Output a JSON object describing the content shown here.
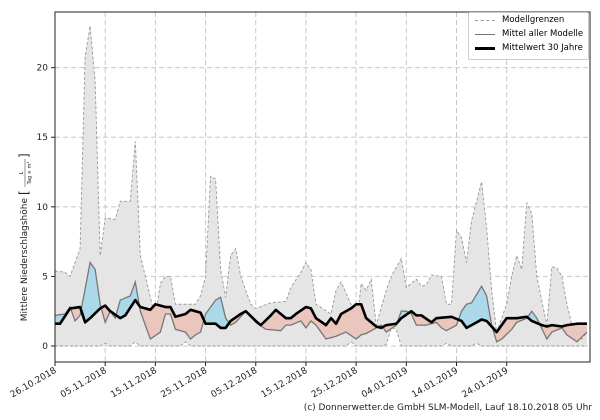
{
  "chart_data": {
    "type": "area",
    "ylabel": "Mittlere Niederschlagshöhe",
    "ylabel_unit_numerator": "L",
    "ylabel_unit_denominator": "Tag × m²",
    "ylim": [
      -1.15,
      24
    ],
    "yticks": [
      "0",
      "5",
      "10",
      "15",
      "20"
    ],
    "xlim": [
      "2018-10-26",
      "2019-02-09"
    ],
    "xticks": [
      {
        "date": "2018-10-26",
        "label": "26.10.2018"
      },
      {
        "date": "2018-11-05",
        "label": "05.11.2018"
      },
      {
        "date": "2018-11-15",
        "label": "15.11.2018"
      },
      {
        "date": "2018-11-25",
        "label": "25.11.2018"
      },
      {
        "date": "2018-12-05",
        "label": "05.12.2018"
      },
      {
        "date": "2018-12-15",
        "label": "15.12.2018"
      },
      {
        "date": "2018-12-25",
        "label": "25.12.2018"
      },
      {
        "date": "2019-01-04",
        "label": "04.01.2019"
      },
      {
        "date": "2019-01-14",
        "label": "14.01.2019"
      },
      {
        "date": "2019-01-24",
        "label": "24.01.2019"
      }
    ],
    "grid": true,
    "legend_position": "top-right",
    "legend": [
      "Modellgrenzen",
      "Mittel aller Modelle",
      "Mittelwert 30 Jahre"
    ],
    "colors": {
      "range_fill": "#e5e5e5",
      "range_edge": "#999999",
      "models_line": "#777777",
      "clim_line": "#000000",
      "above_fill": "#acd9ea",
      "below_fill": "#eac6bd"
    },
    "series": {
      "upper": [
        [
          "2018-10-26",
          5.4
        ],
        [
          "2018-10-28",
          5.3
        ],
        [
          "2018-10-29",
          5.0
        ],
        [
          "2018-10-31",
          7.0
        ],
        [
          "2018-11-01",
          20.8
        ],
        [
          "2018-11-02",
          23.0
        ],
        [
          "2018-11-03",
          19.0
        ],
        [
          "2018-11-04",
          6.5
        ],
        [
          "2018-11-05",
          9.2
        ],
        [
          "2018-11-07",
          9.1
        ],
        [
          "2018-11-08",
          10.4
        ],
        [
          "2018-11-10",
          10.4
        ],
        [
          "2018-11-11",
          14.7
        ],
        [
          "2018-11-12",
          6.5
        ],
        [
          "2018-11-13",
          5.0
        ],
        [
          "2018-11-15",
          2.0
        ],
        [
          "2018-11-16",
          4.5
        ],
        [
          "2018-11-17",
          5.0
        ],
        [
          "2018-11-18",
          5.0
        ],
        [
          "2018-11-19",
          3.0
        ],
        [
          "2018-11-23",
          3.0
        ],
        [
          "2018-11-24",
          3.6
        ],
        [
          "2018-11-25",
          5.0
        ],
        [
          "2018-11-26",
          12.2
        ],
        [
          "2018-11-27",
          12.0
        ],
        [
          "2018-11-28",
          5.5
        ],
        [
          "2018-11-29",
          3.5
        ],
        [
          "2018-11-30",
          6.5
        ],
        [
          "2018-12-01",
          7.0
        ],
        [
          "2018-12-02",
          5.0
        ],
        [
          "2018-12-04",
          3.0
        ],
        [
          "2018-12-05",
          2.7
        ],
        [
          "2018-12-08",
          3.1
        ],
        [
          "2018-12-11",
          3.2
        ],
        [
          "2018-12-12",
          4.2
        ],
        [
          "2018-12-14",
          5.3
        ],
        [
          "2018-12-15",
          6.0
        ],
        [
          "2018-12-16",
          5.5
        ],
        [
          "2018-12-17",
          3.0
        ],
        [
          "2018-12-20",
          2.3
        ],
        [
          "2018-12-21",
          4.0
        ],
        [
          "2018-12-22",
          4.6
        ],
        [
          "2018-12-24",
          3.0
        ],
        [
          "2018-12-25",
          1.0
        ],
        [
          "2018-12-26",
          4.5
        ],
        [
          "2018-12-27",
          4.0
        ],
        [
          "2018-12-28",
          4.8
        ],
        [
          "2018-12-29",
          1.5
        ],
        [
          "2018-12-31",
          4.0
        ],
        [
          "2019-01-01",
          5.0
        ],
        [
          "2019-01-03",
          6.3
        ],
        [
          "2019-01-04",
          4.2
        ],
        [
          "2019-01-06",
          4.8
        ],
        [
          "2019-01-07",
          4.3
        ],
        [
          "2019-01-08",
          4.4
        ],
        [
          "2019-01-09",
          5.1
        ],
        [
          "2019-01-11",
          5.0
        ],
        [
          "2019-01-12",
          3.0
        ],
        [
          "2019-01-13",
          3.0
        ],
        [
          "2019-01-14",
          8.3
        ],
        [
          "2019-01-15",
          7.8
        ],
        [
          "2019-01-16",
          6.0
        ],
        [
          "2019-01-17",
          9.0
        ],
        [
          "2019-01-19",
          11.8
        ],
        [
          "2019-01-20",
          8.5
        ],
        [
          "2019-01-21",
          4.0
        ],
        [
          "2019-01-22",
          1.0
        ],
        [
          "2019-01-24",
          3.0
        ],
        [
          "2019-01-25",
          5.0
        ],
        [
          "2019-01-26",
          6.5
        ],
        [
          "2019-01-27",
          5.5
        ],
        [
          "2019-01-28",
          10.3
        ],
        [
          "2019-01-29",
          9.5
        ],
        [
          "2019-01-30",
          5.0
        ],
        [
          "2019-02-01",
          1.5
        ],
        [
          "2019-02-02",
          5.7
        ],
        [
          "2019-02-03",
          5.6
        ],
        [
          "2019-02-04",
          5.0
        ],
        [
          "2019-02-05",
          3.0
        ],
        [
          "2019-02-06",
          1.5
        ],
        [
          "2019-02-08",
          0.5
        ],
        [
          "2019-02-09",
          1.0
        ]
      ],
      "lower": [
        [
          "2018-10-26",
          0
        ],
        [
          "2018-11-04",
          0
        ],
        [
          "2018-11-05",
          0.2
        ],
        [
          "2018-11-06",
          0
        ],
        [
          "2018-11-10",
          0
        ],
        [
          "2018-11-11",
          0.3
        ],
        [
          "2018-11-12",
          0
        ],
        [
          "2018-11-20",
          0
        ],
        [
          "2018-11-21",
          0.3
        ],
        [
          "2018-11-22",
          0
        ],
        [
          "2018-12-23",
          0
        ],
        [
          "2018-12-24",
          0.3
        ],
        [
          "2018-12-25",
          0
        ],
        [
          "2018-12-30",
          0
        ],
        [
          "2018-12-31",
          0.1
        ],
        [
          "2019-01-01",
          1.3
        ],
        [
          "2019-01-02",
          1.2
        ],
        [
          "2019-01-03",
          0
        ],
        [
          "2019-01-11",
          0
        ],
        [
          "2019-01-12",
          0.2
        ],
        [
          "2019-01-13",
          0
        ],
        [
          "2019-01-17",
          0
        ],
        [
          "2019-01-18",
          0.2
        ],
        [
          "2019-01-19",
          0
        ],
        [
          "2019-02-09",
          0
        ]
      ],
      "models_mean": [
        [
          "2018-10-26",
          2.2
        ],
        [
          "2018-10-28",
          2.3
        ],
        [
          "2018-10-29",
          2.8
        ],
        [
          "2018-10-30",
          1.8
        ],
        [
          "2018-10-31",
          2.2
        ],
        [
          "2018-11-02",
          6.0
        ],
        [
          "2018-11-03",
          5.5
        ],
        [
          "2018-11-04",
          3.0
        ],
        [
          "2018-11-05",
          1.7
        ],
        [
          "2018-11-06",
          2.5
        ],
        [
          "2018-11-07",
          2.0
        ],
        [
          "2018-11-08",
          3.3
        ],
        [
          "2018-11-10",
          3.6
        ],
        [
          "2018-11-11",
          4.6
        ],
        [
          "2018-11-12",
          2.5
        ],
        [
          "2018-11-13",
          1.5
        ],
        [
          "2018-11-14",
          0.5
        ],
        [
          "2018-11-16",
          1.0
        ],
        [
          "2018-11-17",
          2.3
        ],
        [
          "2018-11-18",
          2.3
        ],
        [
          "2018-11-19",
          1.2
        ],
        [
          "2018-11-21",
          1.0
        ],
        [
          "2018-11-22",
          0.5
        ],
        [
          "2018-11-23",
          0.8
        ],
        [
          "2018-11-24",
          1.0
        ],
        [
          "2018-11-25",
          2.3
        ],
        [
          "2018-11-27",
          3.3
        ],
        [
          "2018-11-28",
          3.5
        ],
        [
          "2018-11-29",
          2.0
        ],
        [
          "2018-11-30",
          1.5
        ],
        [
          "2018-12-01",
          1.7
        ],
        [
          "2018-12-03",
          2.5
        ],
        [
          "2018-12-05",
          1.7
        ],
        [
          "2018-12-07",
          1.2
        ],
        [
          "2018-12-10",
          1.1
        ],
        [
          "2018-12-11",
          1.5
        ],
        [
          "2018-12-12",
          1.5
        ],
        [
          "2018-12-14",
          1.8
        ],
        [
          "2018-12-15",
          1.3
        ],
        [
          "2018-12-16",
          1.8
        ],
        [
          "2018-12-17",
          1.5
        ],
        [
          "2018-12-19",
          0.5
        ],
        [
          "2018-12-21",
          0.7
        ],
        [
          "2018-12-23",
          1.0
        ],
        [
          "2018-12-25",
          0.5
        ],
        [
          "2018-12-26",
          0.8
        ],
        [
          "2018-12-27",
          0.9
        ],
        [
          "2018-12-30",
          1.5
        ],
        [
          "2018-12-31",
          1.0
        ],
        [
          "2019-01-02",
          1.5
        ],
        [
          "2019-01-03",
          2.5
        ],
        [
          "2019-01-04",
          2.5
        ],
        [
          "2019-01-05",
          2.3
        ],
        [
          "2019-01-06",
          1.5
        ],
        [
          "2019-01-08",
          1.5
        ],
        [
          "2019-01-10",
          1.7
        ],
        [
          "2019-01-11",
          1.3
        ],
        [
          "2019-01-12",
          1.1
        ],
        [
          "2019-01-14",
          1.5
        ],
        [
          "2019-01-15",
          2.5
        ],
        [
          "2019-01-16",
          3.0
        ],
        [
          "2019-01-17",
          3.1
        ],
        [
          "2019-01-19",
          4.3
        ],
        [
          "2019-01-20",
          3.6
        ],
        [
          "2019-01-21",
          1.5
        ],
        [
          "2019-01-22",
          0.3
        ],
        [
          "2019-01-23",
          0.5
        ],
        [
          "2019-01-25",
          1.2
        ],
        [
          "2019-01-26",
          1.7
        ],
        [
          "2019-01-28",
          2.0
        ],
        [
          "2019-01-29",
          2.5
        ],
        [
          "2019-01-30",
          2.0
        ],
        [
          "2019-02-01",
          0.5
        ],
        [
          "2019-02-02",
          1.0
        ],
        [
          "2019-02-04",
          1.3
        ],
        [
          "2019-02-05",
          0.8
        ],
        [
          "2019-02-07",
          0.3
        ],
        [
          "2019-02-09",
          1.0
        ]
      ],
      "clim_mean": [
        [
          "2018-10-26",
          1.6
        ],
        [
          "2018-10-27",
          1.6
        ],
        [
          "2018-10-29",
          2.7
        ],
        [
          "2018-10-31",
          2.8
        ],
        [
          "2018-11-01",
          1.7
        ],
        [
          "2018-11-02",
          2.0
        ],
        [
          "2018-11-04",
          2.7
        ],
        [
          "2018-11-05",
          2.9
        ],
        [
          "2018-11-06",
          2.5
        ],
        [
          "2018-11-08",
          2.0
        ],
        [
          "2018-11-09",
          2.2
        ],
        [
          "2018-11-11",
          3.3
        ],
        [
          "2018-11-12",
          2.8
        ],
        [
          "2018-11-14",
          2.6
        ],
        [
          "2018-11-15",
          3.0
        ],
        [
          "2018-11-17",
          2.8
        ],
        [
          "2018-11-18",
          2.8
        ],
        [
          "2018-11-19",
          2.1
        ],
        [
          "2018-11-21",
          2.3
        ],
        [
          "2018-11-22",
          2.6
        ],
        [
          "2018-11-24",
          2.4
        ],
        [
          "2018-11-25",
          1.6
        ],
        [
          "2018-11-27",
          1.6
        ],
        [
          "2018-11-28",
          1.3
        ],
        [
          "2018-11-29",
          1.3
        ],
        [
          "2018-11-30",
          1.8
        ],
        [
          "2018-12-02",
          2.3
        ],
        [
          "2018-12-03",
          2.5
        ],
        [
          "2018-12-05",
          1.8
        ],
        [
          "2018-12-06",
          1.5
        ],
        [
          "2018-12-08",
          2.2
        ],
        [
          "2018-12-09",
          2.6
        ],
        [
          "2018-12-11",
          2.0
        ],
        [
          "2018-12-12",
          2.0
        ],
        [
          "2018-12-13",
          2.3
        ],
        [
          "2018-12-15",
          2.8
        ],
        [
          "2018-12-16",
          2.7
        ],
        [
          "2018-12-17",
          2.0
        ],
        [
          "2018-12-19",
          1.5
        ],
        [
          "2018-12-20",
          2.0
        ],
        [
          "2018-12-21",
          1.6
        ],
        [
          "2018-12-22",
          2.3
        ],
        [
          "2018-12-24",
          2.7
        ],
        [
          "2018-12-25",
          3.0
        ],
        [
          "2018-12-26",
          3.0
        ],
        [
          "2018-12-27",
          2.0
        ],
        [
          "2018-12-29",
          1.4
        ],
        [
          "2018-12-30",
          1.3
        ],
        [
          "2018-12-31",
          1.5
        ],
        [
          "2019-01-02",
          1.6
        ],
        [
          "2019-01-03",
          2.0
        ],
        [
          "2019-01-05",
          2.5
        ],
        [
          "2019-01-06",
          2.2
        ],
        [
          "2019-01-07",
          2.2
        ],
        [
          "2019-01-09",
          1.7
        ],
        [
          "2019-01-10",
          2.0
        ],
        [
          "2019-01-13",
          2.1
        ],
        [
          "2019-01-15",
          1.8
        ],
        [
          "2019-01-16",
          1.3
        ],
        [
          "2019-01-17",
          1.5
        ],
        [
          "2019-01-19",
          1.9
        ],
        [
          "2019-01-20",
          1.8
        ],
        [
          "2019-01-21",
          1.4
        ],
        [
          "2019-01-22",
          1.0
        ],
        [
          "2019-01-23",
          1.5
        ],
        [
          "2019-01-24",
          2.0
        ],
        [
          "2019-01-26",
          2.0
        ],
        [
          "2019-01-28",
          2.1
        ],
        [
          "2019-01-29",
          1.8
        ],
        [
          "2019-01-31",
          1.5
        ],
        [
          "2019-02-01",
          1.4
        ],
        [
          "2019-02-02",
          1.5
        ],
        [
          "2019-02-04",
          1.4
        ],
        [
          "2019-02-05",
          1.5
        ],
        [
          "2019-02-07",
          1.6
        ],
        [
          "2019-02-09",
          1.6
        ]
      ]
    }
  },
  "footer": "(c) Donnerwetter.de GmbH SLM-Modell, Lauf 18.10.2018 05 Uhr"
}
